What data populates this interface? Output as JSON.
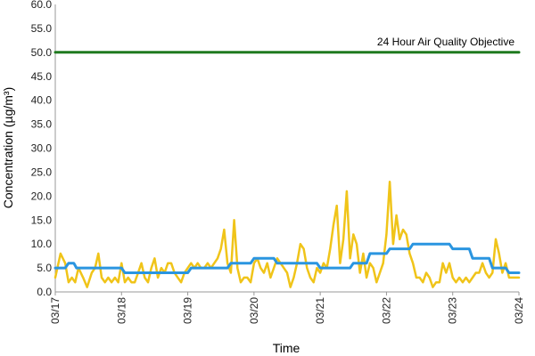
{
  "chart_data": {
    "type": "line",
    "xlabel": "Time",
    "ylabel": "Concentration (µg/m³)",
    "ylim": [
      0,
      60
    ],
    "yticks": [
      "0.0",
      "5.0",
      "10.0",
      "15.0",
      "20.0",
      "25.0",
      "30.0",
      "35.0",
      "40.0",
      "45.0",
      "50.0",
      "55.0",
      "60.0"
    ],
    "xlim": [
      0,
      7
    ],
    "xticks": [
      "03/17",
      "03/18",
      "03/19",
      "03/20",
      "03/21",
      "03/22",
      "03/23",
      "03/24"
    ],
    "grid": false,
    "legend": "none",
    "annotations": [
      {
        "text": "24 Hour Air Quality Objective",
        "value": 50
      }
    ],
    "series": [
      {
        "color": "#1f7a1f",
        "x": [
          0,
          7
        ],
        "y": [
          50,
          50
        ]
      },
      {
        "color": "#f0c419",
        "x": [
          0.0,
          0.08,
          0.15,
          0.2,
          0.25,
          0.3,
          0.35,
          0.42,
          0.48,
          0.55,
          0.6,
          0.65,
          0.7,
          0.75,
          0.8,
          0.85,
          0.9,
          0.95,
          1.0,
          1.05,
          1.1,
          1.15,
          1.2,
          1.25,
          1.3,
          1.35,
          1.4,
          1.45,
          1.5,
          1.55,
          1.6,
          1.65,
          1.7,
          1.75,
          1.8,
          1.85,
          1.9,
          1.95,
          2.0,
          2.05,
          2.1,
          2.15,
          2.2,
          2.25,
          2.3,
          2.35,
          2.4,
          2.45,
          2.5,
          2.55,
          2.6,
          2.65,
          2.7,
          2.75,
          2.8,
          2.85,
          2.9,
          2.95,
          3.0,
          3.05,
          3.1,
          3.15,
          3.2,
          3.25,
          3.3,
          3.35,
          3.4,
          3.45,
          3.5,
          3.55,
          3.6,
          3.65,
          3.7,
          3.75,
          3.8,
          3.85,
          3.9,
          3.95,
          4.0,
          4.05,
          4.1,
          4.15,
          4.2,
          4.25,
          4.3,
          4.35,
          4.4,
          4.45,
          4.5,
          4.55,
          4.6,
          4.65,
          4.7,
          4.75,
          4.8,
          4.85,
          4.9,
          4.95,
          5.0,
          5.05,
          5.1,
          5.15,
          5.2,
          5.25,
          5.3,
          5.35,
          5.4,
          5.45,
          5.5,
          5.55,
          5.6,
          5.65,
          5.7,
          5.75,
          5.8,
          5.85,
          5.9,
          5.95,
          6.0,
          6.05,
          6.1,
          6.15,
          6.2,
          6.25,
          6.3,
          6.35,
          6.4,
          6.45,
          6.5,
          6.55,
          6.6,
          6.65,
          6.7,
          6.75,
          6.8,
          6.85,
          6.9,
          6.95,
          7.0
        ],
        "y": [
          3.0,
          8.0,
          6.0,
          2.0,
          3.0,
          2.0,
          5.0,
          3.0,
          1.0,
          4.0,
          5.0,
          8.0,
          3.0,
          2.0,
          3.0,
          2.0,
          3.0,
          2.0,
          6.0,
          2.0,
          3.0,
          2.0,
          2.0,
          4.0,
          6.0,
          3.0,
          2.0,
          5.0,
          7.0,
          3.0,
          5.0,
          4.0,
          6.0,
          6.0,
          4.0,
          3.0,
          2.0,
          4.0,
          5.0,
          6.0,
          5.0,
          6.0,
          5.0,
          5.0,
          6.0,
          5.0,
          6.0,
          7.0,
          9.0,
          13.0,
          6.0,
          4.0,
          15.0,
          5.0,
          2.0,
          3.0,
          3.0,
          2.0,
          6.0,
          7.0,
          5.0,
          4.0,
          6.0,
          3.0,
          5.0,
          7.0,
          6.0,
          5.0,
          4.0,
          1.0,
          3.0,
          6.0,
          10.0,
          9.0,
          5.0,
          3.0,
          2.0,
          5.0,
          4.0,
          6.0,
          5.0,
          9.0,
          14.0,
          18.0,
          6.0,
          11.0,
          21.0,
          7.0,
          12.0,
          10.0,
          4.0,
          8.0,
          3.0,
          6.0,
          5.0,
          2.0,
          4.0,
          6.0,
          12.0,
          23.0,
          10.0,
          16.0,
          11.0,
          13.0,
          12.0,
          8.0,
          6.0,
          3.0,
          3.0,
          2.0,
          4.0,
          3.0,
          1.0,
          2.0,
          2.0,
          6.0,
          4.0,
          6.0,
          3.0,
          2.0,
          3.0,
          2.0,
          3.0,
          2.0,
          3.0,
          4.0,
          4.0,
          6.0,
          4.0,
          3.0,
          4.0,
          11.0,
          8.0,
          4.0,
          6.0,
          3.0,
          3.0,
          3.0,
          3.0
        ]
      },
      {
        "color": "#2a95e0",
        "x": [
          0.0,
          0.15,
          0.2,
          0.28,
          0.32,
          0.4,
          0.45,
          1.0,
          1.05,
          2.0,
          2.05,
          2.6,
          2.65,
          2.95,
          3.0,
          3.3,
          3.35,
          3.95,
          4.0,
          4.2,
          4.25,
          4.45,
          4.5,
          4.7,
          4.75,
          5.0,
          5.05,
          5.35,
          5.4,
          5.7,
          5.75,
          5.95,
          6.0,
          6.25,
          6.3,
          6.55,
          6.6,
          6.8,
          6.85,
          7.0
        ],
        "y": [
          5.0,
          5.0,
          6.0,
          6.0,
          5.0,
          5.0,
          5.0,
          5.0,
          4.0,
          4.0,
          5.0,
          5.0,
          6.0,
          6.0,
          7.0,
          7.0,
          6.0,
          6.0,
          5.0,
          5.0,
          5.0,
          5.0,
          6.0,
          6.0,
          8.0,
          8.0,
          9.0,
          9.0,
          10.0,
          10.0,
          10.0,
          10.0,
          9.0,
          9.0,
          7.0,
          7.0,
          5.0,
          5.0,
          4.0,
          4.0
        ]
      }
    ]
  }
}
